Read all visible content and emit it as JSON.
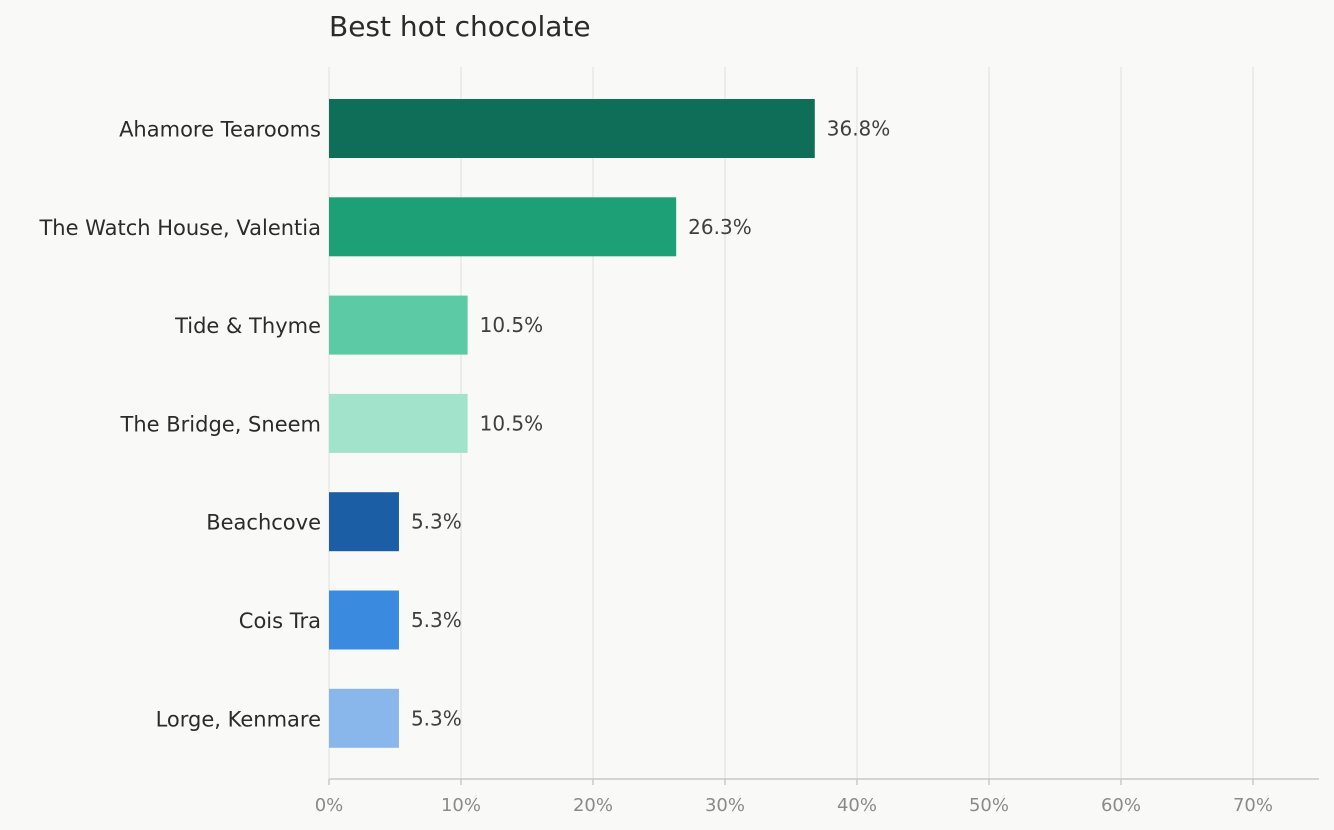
{
  "chart_data": {
    "type": "bar",
    "orientation": "horizontal",
    "title": "Best hot chocolate",
    "xlabel": "",
    "ylabel": "",
    "categories": [
      "Ahamore Tearooms",
      "The Watch House, Valentia",
      "Tide & Thyme",
      "The Bridge, Sneem",
      "Beachcove",
      "Cois Tra",
      "Lorge, Kenmare"
    ],
    "values": [
      36.8,
      26.3,
      10.5,
      10.5,
      5.3,
      5.3,
      5.3
    ],
    "value_labels": [
      "36.8%",
      "26.3%",
      "10.5%",
      "10.5%",
      "5.3%",
      "5.3%",
      "5.3%"
    ],
    "colors": [
      "#0e6e58",
      "#1ea077",
      "#5ccaa5",
      "#a2e3cc",
      "#1b5ea6",
      "#3a8bdf",
      "#89b7eb"
    ],
    "xlim": [
      0,
      75
    ],
    "x_ticks": [
      0,
      10,
      20,
      30,
      40,
      50,
      60,
      70
    ],
    "x_tick_labels": [
      "0%",
      "10%",
      "20%",
      "30%",
      "40%",
      "50%",
      "60%",
      "70%"
    ],
    "grid": "vertical",
    "legend": "none"
  }
}
